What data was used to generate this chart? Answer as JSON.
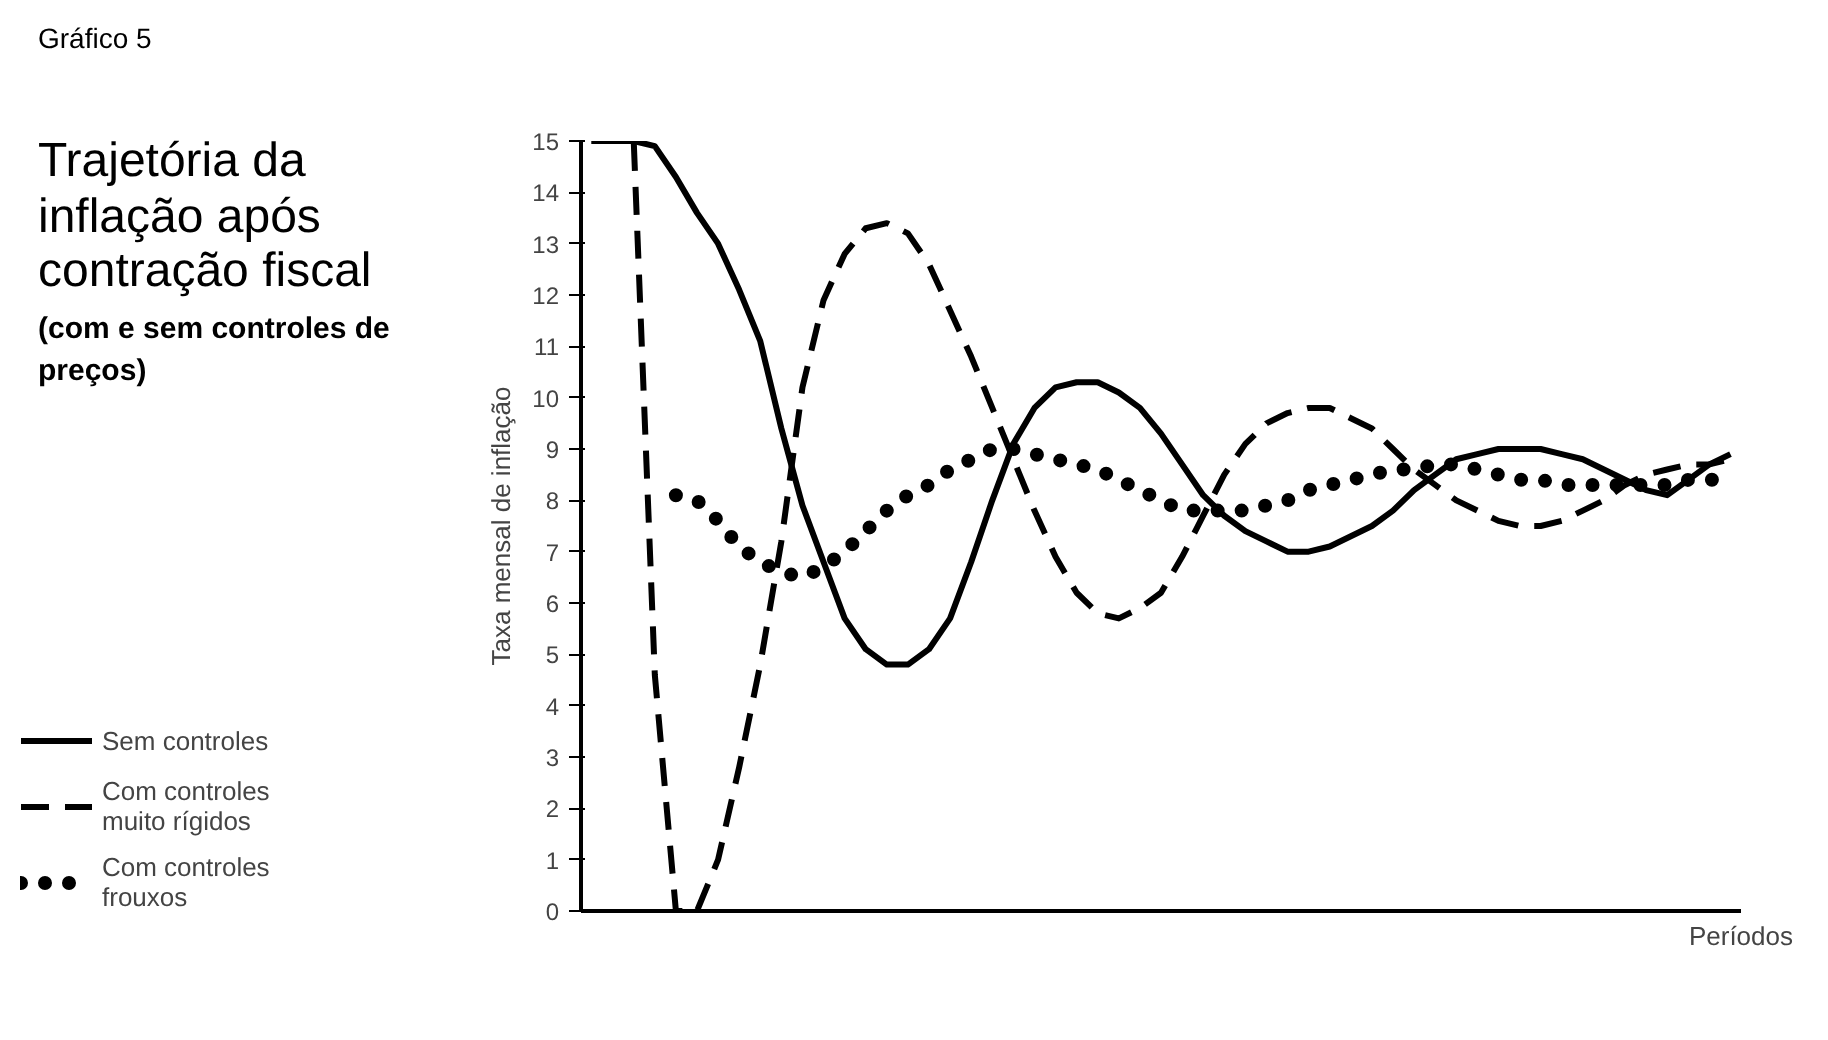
{
  "chart_data": {
    "type": "line",
    "title": "Trajetória da inflação após contração fiscal",
    "subtitle": "(com e sem controles de preços)",
    "annotations": [
      "Gráfico 5"
    ],
    "xlabel": "Períodos",
    "ylabel": "Taxa mensal de inflação",
    "categories": [
      null,
      null,
      null,
      null,
      null,
      null,
      null,
      null,
      null,
      null,
      null,
      null,
      null,
      null,
      null,
      null,
      null,
      null,
      null,
      null,
      null,
      null,
      null,
      null,
      null,
      null,
      null,
      null,
      null,
      null,
      null,
      null,
      null,
      null,
      null,
      null,
      null,
      null,
      null,
      null,
      null,
      null,
      null,
      null,
      null,
      null,
      null,
      null,
      null,
      null,
      null,
      null,
      null,
      null,
      null
    ],
    "series": [
      {
        "name": "Sem controles",
        "color": "#000000",
        "line_style": "solid",
        "values": [
          15,
          15,
          15,
          14.9,
          14.3,
          13.6,
          13.0,
          12.1,
          11.1,
          9.4,
          7.9,
          6.8,
          5.7,
          5.1,
          4.8,
          4.8,
          5.1,
          5.7,
          6.8,
          8.0,
          9.1,
          9.8,
          10.2,
          10.3,
          10.3,
          10.1,
          9.8,
          9.3,
          8.7,
          8.1,
          7.7,
          7.4,
          7.2,
          7.0,
          7.0,
          7.1,
          7.3,
          7.5,
          7.8,
          8.2,
          8.5,
          8.8,
          8.9,
          9.0,
          9.0,
          9.0,
          8.9,
          8.8,
          8.6,
          8.4,
          8.2,
          8.1,
          8.4,
          8.7,
          8.9
        ]
      },
      {
        "name": "Com controles muito rígidos",
        "color": "#000000",
        "line_style": "dashed",
        "values": [
          15,
          15,
          15,
          4.6,
          0,
          0,
          1.0,
          2.8,
          4.8,
          7.2,
          10.2,
          11.9,
          12.8,
          13.3,
          13.4,
          13.2,
          12.6,
          11.7,
          10.8,
          9.8,
          8.8,
          7.8,
          6.9,
          6.2,
          5.8,
          5.7,
          5.9,
          6.2,
          6.9,
          7.7,
          8.5,
          9.1,
          9.5,
          9.7,
          9.8,
          9.8,
          9.6,
          9.4,
          9.0,
          8.6,
          8.3,
          8.0,
          7.8,
          7.6,
          7.5,
          7.5,
          7.6,
          7.8,
          8.0,
          8.3,
          8.5,
          8.6,
          8.7,
          8.7,
          8.8
        ]
      },
      {
        "name": "Com controles frouxos",
        "color": "#000000",
        "line_style": "dotted",
        "values": [
          null,
          null,
          null,
          null,
          8.1,
          8.0,
          7.6,
          7.1,
          6.8,
          6.6,
          6.5,
          6.7,
          7.0,
          7.4,
          7.8,
          8.1,
          8.3,
          8.6,
          8.8,
          9.0,
          9.0,
          8.9,
          8.8,
          8.7,
          8.6,
          8.4,
          8.2,
          8.0,
          7.8,
          7.8,
          7.8,
          7.8,
          7.9,
          8.0,
          8.2,
          8.3,
          8.4,
          8.5,
          8.6,
          8.6,
          8.7,
          8.7,
          8.6,
          8.5,
          8.4,
          8.4,
          8.3,
          8.3,
          8.3,
          8.3,
          8.3,
          8.3,
          8.4,
          8.4,
          8.4
        ]
      }
    ],
    "ylim": [
      0,
      15
    ],
    "yticks": [
      0,
      1,
      2,
      3,
      4,
      5,
      6,
      7,
      8,
      9,
      10,
      11,
      12,
      13,
      14,
      15
    ],
    "grid": false,
    "legend": "left",
    "tick_labels": "y"
  }
}
